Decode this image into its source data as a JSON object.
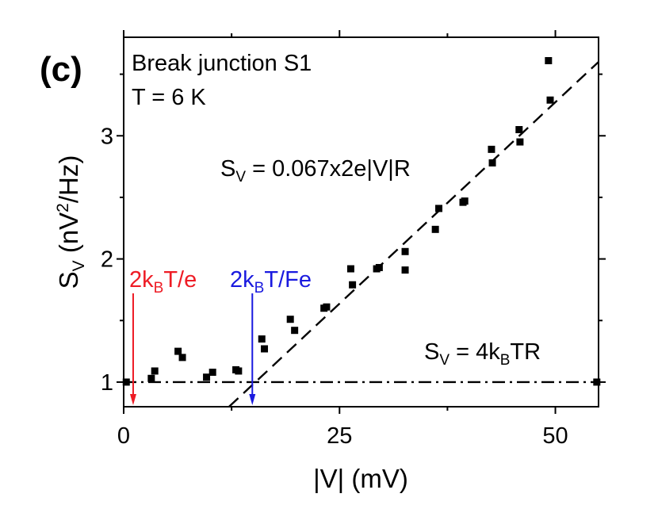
{
  "chart_data": {
    "type": "scatter",
    "panel_label": "(c)",
    "title_lines": [
      "Break junction S1",
      "T = 6 K"
    ],
    "xlabel": "|V| (mV)",
    "ylabel": {
      "base": "S",
      "sub": "V",
      "rest1": " (nV",
      "sup": "2",
      "rest2": "/Hz)"
    },
    "xlim": [
      0,
      55
    ],
    "ylim": [
      0.8,
      3.8
    ],
    "xticks": [
      0,
      25,
      50
    ],
    "yticks": [
      1,
      2,
      3
    ],
    "xtick_labels": [
      "0",
      "25",
      "50"
    ],
    "ytick_labels": [
      "1",
      "2",
      "3"
    ],
    "minor_xticks": [
      12.5,
      37.5
    ],
    "minor_yticks": [
      1.5,
      2.5,
      3.5
    ],
    "points": [
      {
        "x": 0.3,
        "y": 1.0
      },
      {
        "x": 3.2,
        "y": 1.03
      },
      {
        "x": 3.6,
        "y": 1.09
      },
      {
        "x": 6.3,
        "y": 1.25
      },
      {
        "x": 6.8,
        "y": 1.2
      },
      {
        "x": 9.6,
        "y": 1.04
      },
      {
        "x": 10.3,
        "y": 1.08
      },
      {
        "x": 13.0,
        "y": 1.1
      },
      {
        "x": 13.3,
        "y": 1.09
      },
      {
        "x": 16.0,
        "y": 1.35
      },
      {
        "x": 16.3,
        "y": 1.27
      },
      {
        "x": 19.3,
        "y": 1.51
      },
      {
        "x": 19.8,
        "y": 1.42
      },
      {
        "x": 23.2,
        "y": 1.6
      },
      {
        "x": 23.5,
        "y": 1.61
      },
      {
        "x": 26.3,
        "y": 1.92
      },
      {
        "x": 26.5,
        "y": 1.79
      },
      {
        "x": 29.3,
        "y": 1.92
      },
      {
        "x": 29.6,
        "y": 1.93
      },
      {
        "x": 32.6,
        "y": 2.06
      },
      {
        "x": 32.6,
        "y": 1.91
      },
      {
        "x": 36.1,
        "y": 2.24
      },
      {
        "x": 36.5,
        "y": 2.41
      },
      {
        "x": 39.3,
        "y": 2.46
      },
      {
        "x": 39.5,
        "y": 2.47
      },
      {
        "x": 42.6,
        "y": 2.89
      },
      {
        "x": 42.7,
        "y": 2.78
      },
      {
        "x": 45.8,
        "y": 3.05
      },
      {
        "x": 45.9,
        "y": 2.95
      },
      {
        "x": 49.2,
        "y": 3.61
      },
      {
        "x": 49.4,
        "y": 3.29
      },
      {
        "x": 54.8,
        "y": 1.0
      }
    ],
    "fit_line": {
      "style": "dashed",
      "from": {
        "x": 12.2,
        "y": 0.8
      },
      "to": {
        "x": 55,
        "y": 3.6
      },
      "label": {
        "base": "S",
        "sub": "V",
        "rest": " = 0.067x2e|V|R"
      }
    },
    "thermal_line": {
      "style": "dash-dot",
      "y": 1.0,
      "label": {
        "base": "S",
        "sub": "V",
        "rest1": " = 4k",
        "sub2": "B",
        "rest2": "TR"
      }
    },
    "arrows": [
      {
        "x": 1.1,
        "color": "#ee1c25",
        "label": {
          "pre": "2k",
          "sub": "B",
          "post": "T/e"
        }
      },
      {
        "x": 14.9,
        "color": "#1a1adf",
        "label": {
          "pre": "2k",
          "sub": "B",
          "post": "T/Fe"
        }
      }
    ],
    "grid": false
  }
}
